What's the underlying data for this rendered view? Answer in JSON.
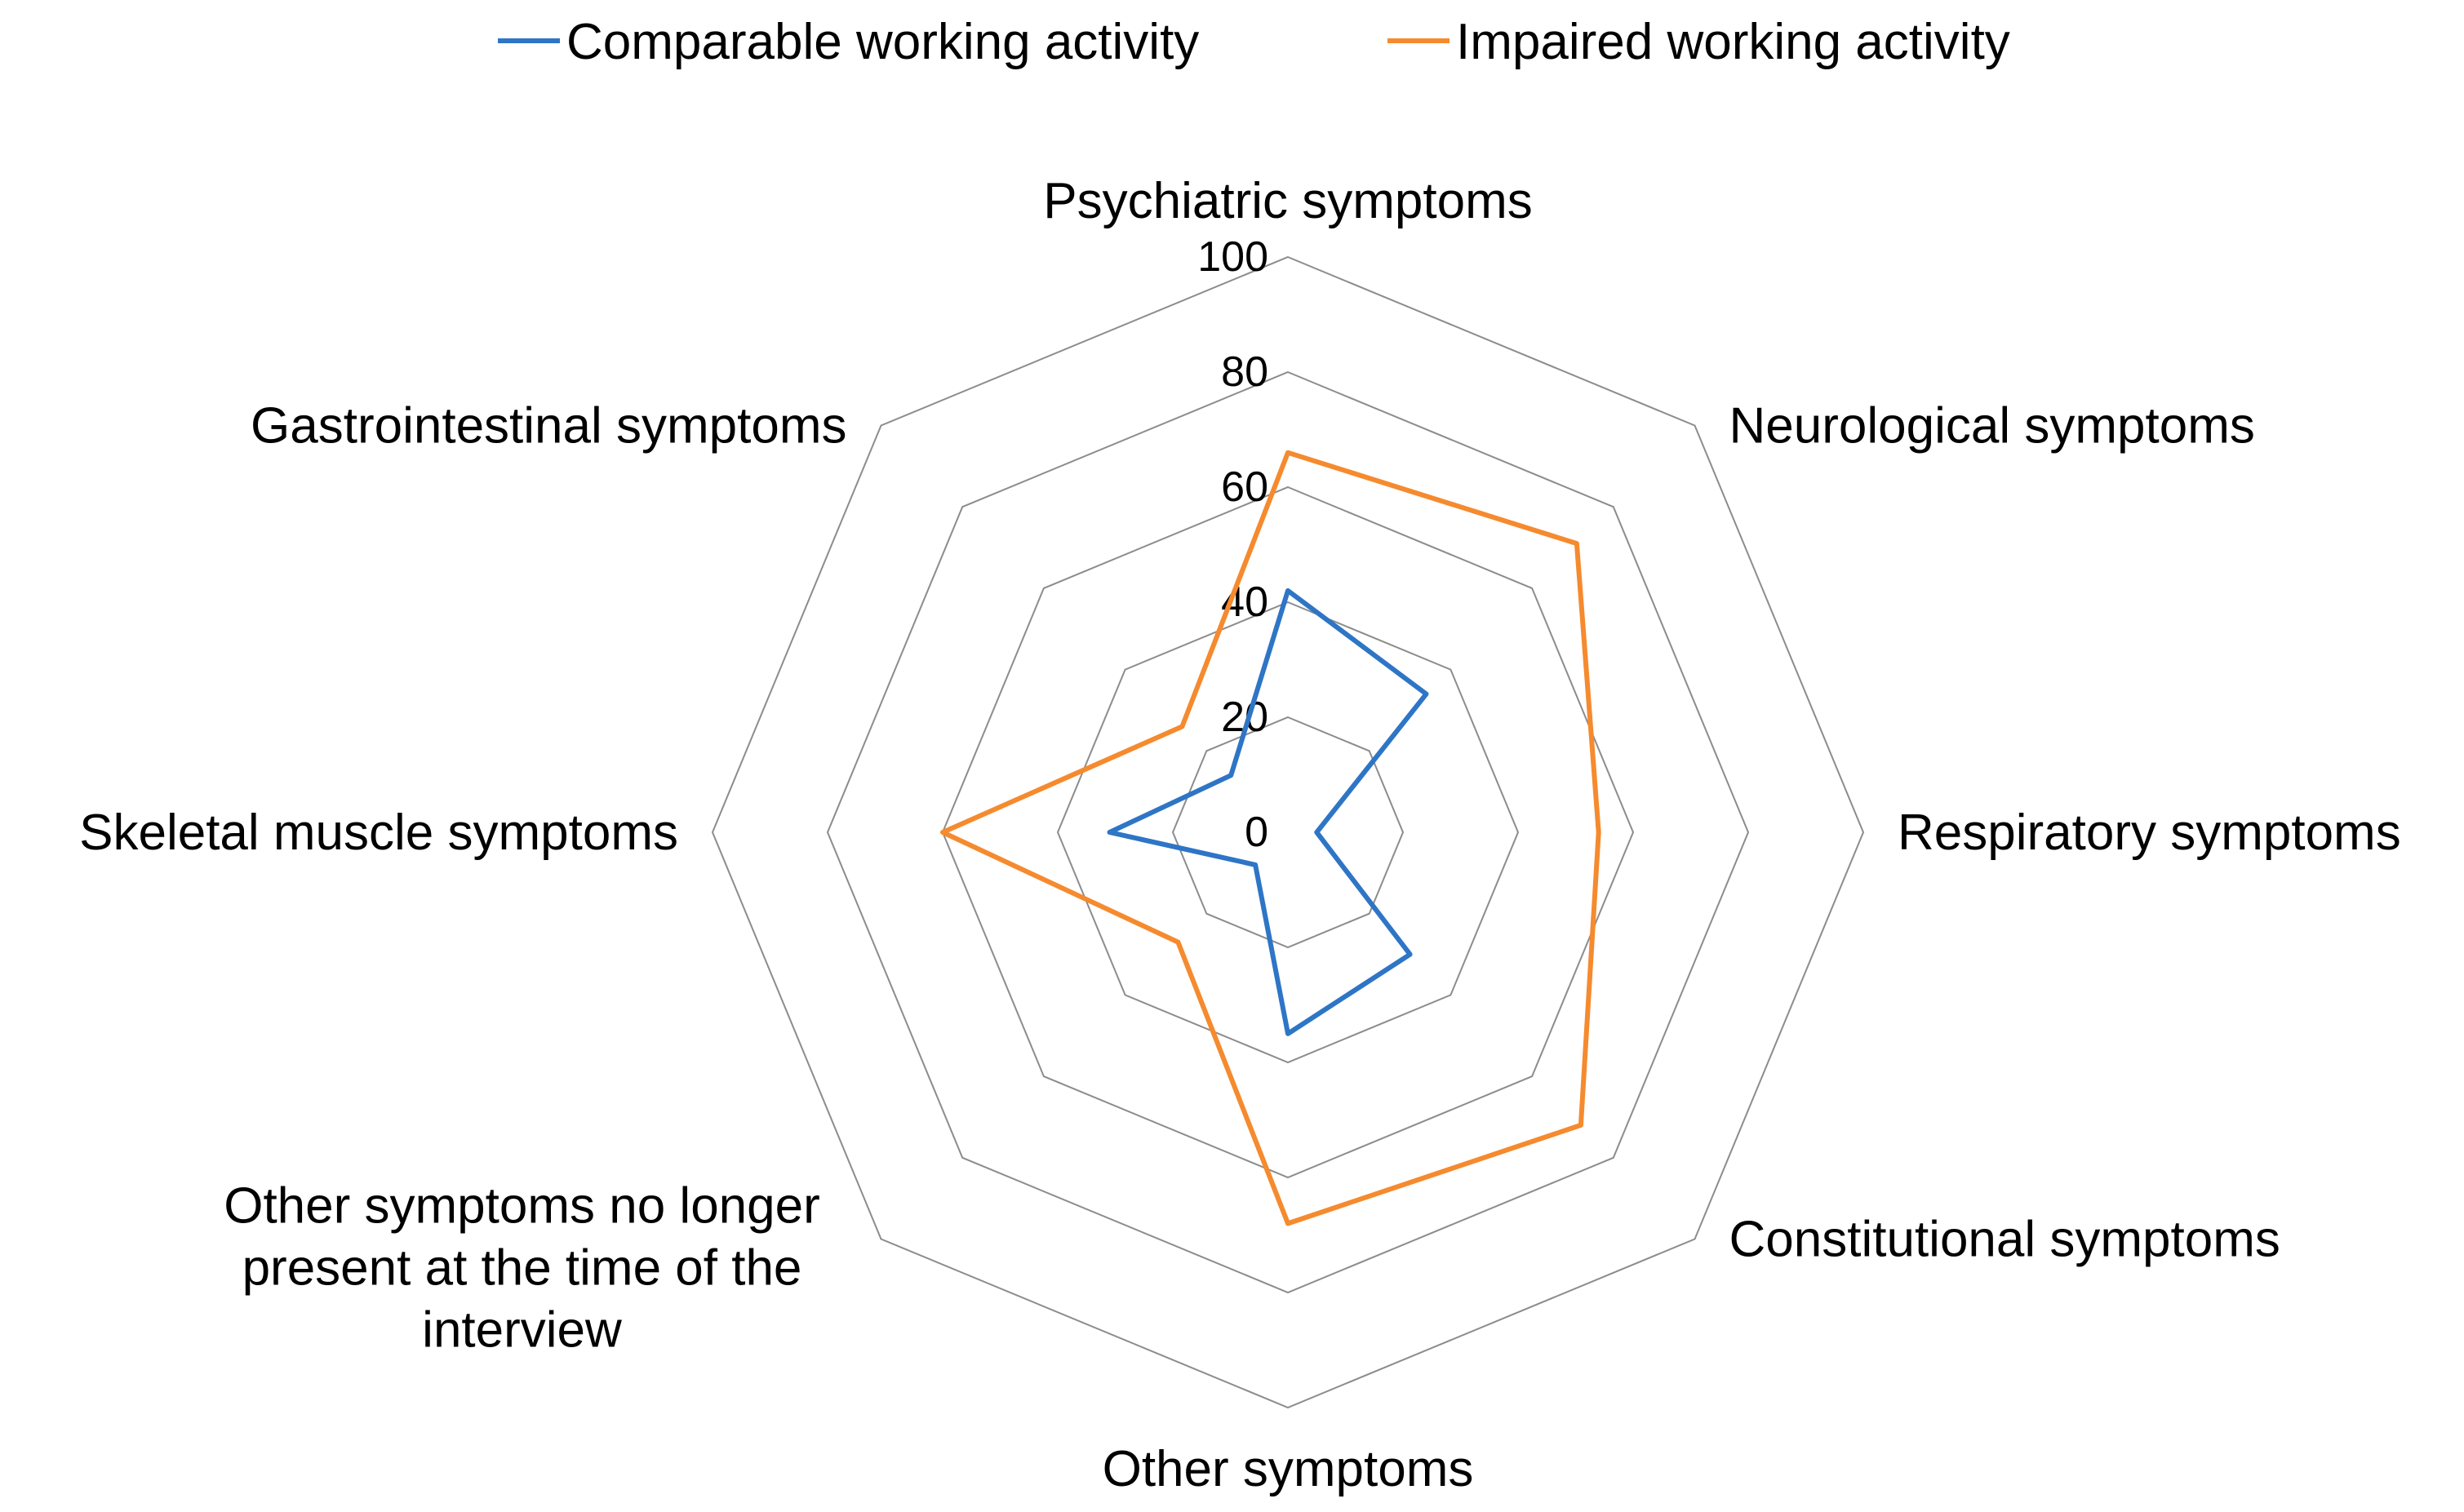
{
  "chart_data": {
    "type": "radar",
    "title": "",
    "categories": [
      [
        "Psychiatric symptoms"
      ],
      [
        "Neurological symptoms"
      ],
      [
        "Respiratory symptoms"
      ],
      [
        "Constitutional  symptoms"
      ],
      [
        "Other symptoms"
      ],
      [
        "Other symptoms no longer",
        "present at the time of the",
        "interview"
      ],
      [
        "Skeletal muscle symptoms"
      ],
      [
        "Gastrointestinal symptoms"
      ]
    ],
    "r_axis": {
      "min": 0,
      "max": 100,
      "tick_values": [
        0,
        20,
        40,
        60,
        80,
        100
      ],
      "tick_labels": [
        "0",
        "20",
        "40",
        "60",
        "80",
        "100"
      ]
    },
    "grid": true,
    "legend": {
      "position": "top",
      "entries": [
        "Comparable working activity",
        "Impaired working activity"
      ]
    },
    "series": [
      {
        "name": "Comparable working activity",
        "color": "#2E75C6",
        "values": [
          42,
          34,
          5,
          30,
          35,
          8,
          31,
          14
        ]
      },
      {
        "name": "Impaired working activity",
        "color": "#F58A2E",
        "values": [
          66,
          71,
          54,
          72,
          68,
          27,
          60,
          26
        ]
      }
    ]
  },
  "colors": {
    "grid": "#8C8C8C",
    "text": "#000000"
  }
}
